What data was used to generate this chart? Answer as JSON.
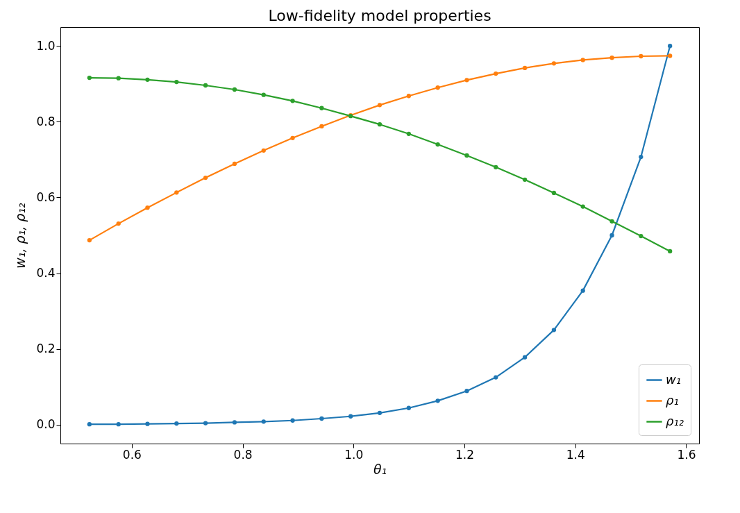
{
  "chart_data": {
    "type": "line",
    "title": "Low-fidelity model properties",
    "xlabel": "θ₁",
    "ylabel": "w₁, ρ₁, ρ₁₂",
    "x": [
      0.5236,
      0.576,
      0.6283,
      0.6807,
      0.733,
      0.7854,
      0.8378,
      0.8901,
      0.9425,
      0.9948,
      1.0472,
      1.0996,
      1.1519,
      1.2043,
      1.2566,
      1.309,
      1.3614,
      1.4137,
      1.4661,
      1.5184,
      1.5708
    ],
    "series": [
      {
        "name": "w₁",
        "color": "#1f77b4",
        "values": [
          0.001,
          0.001,
          0.002,
          0.003,
          0.004,
          0.006,
          0.008,
          0.011,
          0.016,
          0.022,
          0.031,
          0.044,
          0.063,
          0.089,
          0.125,
          0.178,
          0.25,
          0.354,
          0.5,
          0.707,
          1.0
        ]
      },
      {
        "name": "ρ₁",
        "color": "#ff7f0e",
        "values": [
          0.487,
          0.531,
          0.573,
          0.613,
          0.652,
          0.689,
          0.724,
          0.757,
          0.788,
          0.817,
          0.844,
          0.868,
          0.89,
          0.91,
          0.927,
          0.942,
          0.954,
          0.963,
          0.969,
          0.973,
          0.974
        ]
      },
      {
        "name": "ρ₁₂",
        "color": "#2ca02c",
        "values": [
          0.916,
          0.915,
          0.911,
          0.905,
          0.896,
          0.885,
          0.871,
          0.855,
          0.836,
          0.815,
          0.793,
          0.768,
          0.74,
          0.711,
          0.68,
          0.647,
          0.612,
          0.576,
          0.537,
          0.498,
          0.458
        ]
      }
    ],
    "xlim": [
      0.4712,
      1.6232
    ],
    "xticks": [
      0.6,
      0.8,
      {
        "value": 1,
        "label": "1.0"
      },
      1.2,
      1.4,
      1.6
    ],
    "ylim": [
      -0.05,
      1.05
    ],
    "yticks": [
      {
        "value": 0,
        "label": "0.0"
      },
      0.2,
      0.4,
      0.6,
      0.8,
      {
        "value": 1,
        "label": "1.0"
      }
    ],
    "grid": false,
    "legend": "bottom right",
    "marker": "circle",
    "line_style": "solid"
  }
}
